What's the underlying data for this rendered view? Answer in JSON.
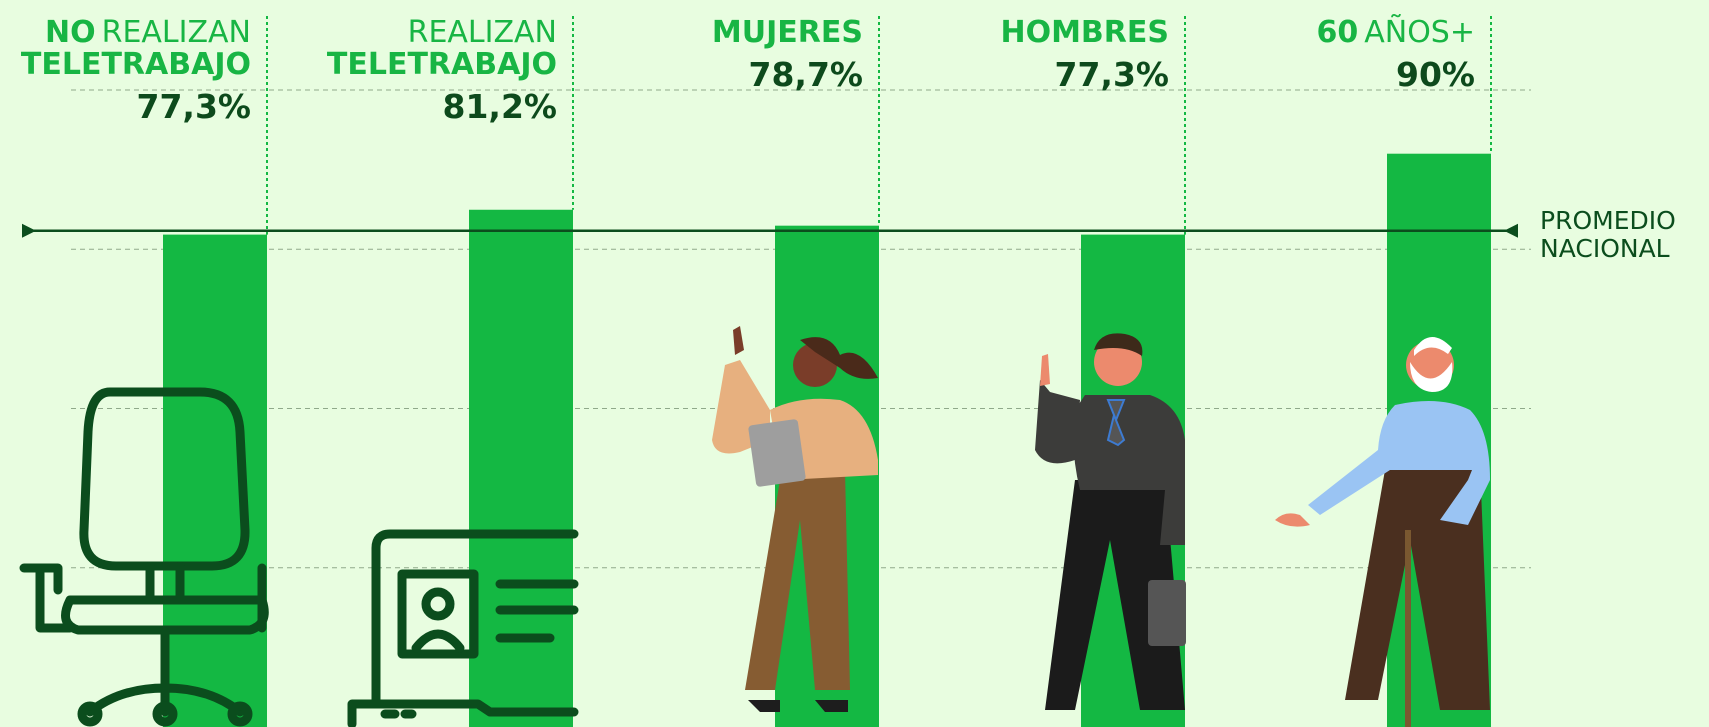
{
  "chart_data": {
    "type": "bar",
    "categories": [
      [
        [
          {
            "text": "NO",
            "bold": true
          },
          {
            "text": "REALIZAN",
            "bold": false
          }
        ],
        [
          {
            "text": "TELETRABAJO",
            "bold": true
          }
        ]
      ],
      [
        [
          {
            "text": "REALIZAN",
            "bold": false
          }
        ],
        [
          {
            "text": "TELETRABAJO",
            "bold": true
          }
        ]
      ],
      [
        [
          {
            "text": "MUJERES",
            "bold": true
          }
        ]
      ],
      [
        [
          {
            "text": "HOMBRES",
            "bold": true
          }
        ]
      ],
      [
        [
          {
            "text": "60",
            "bold": true
          },
          {
            "text": "AÑOS+",
            "bold": false
          }
        ]
      ]
    ],
    "values": [
      77.3,
      81.2,
      78.7,
      77.3,
      90
    ],
    "value_labels": [
      "77,3%",
      "81,2%",
      "78,7%",
      "77,3%",
      "90%"
    ],
    "color": "#14b843",
    "ylim": [
      0,
      100
    ],
    "gridlines": [
      25,
      50,
      75,
      100
    ],
    "reference_line": {
      "value": 77.9,
      "label": [
        "PROMEDIO",
        "NACIONAL"
      ]
    }
  }
}
